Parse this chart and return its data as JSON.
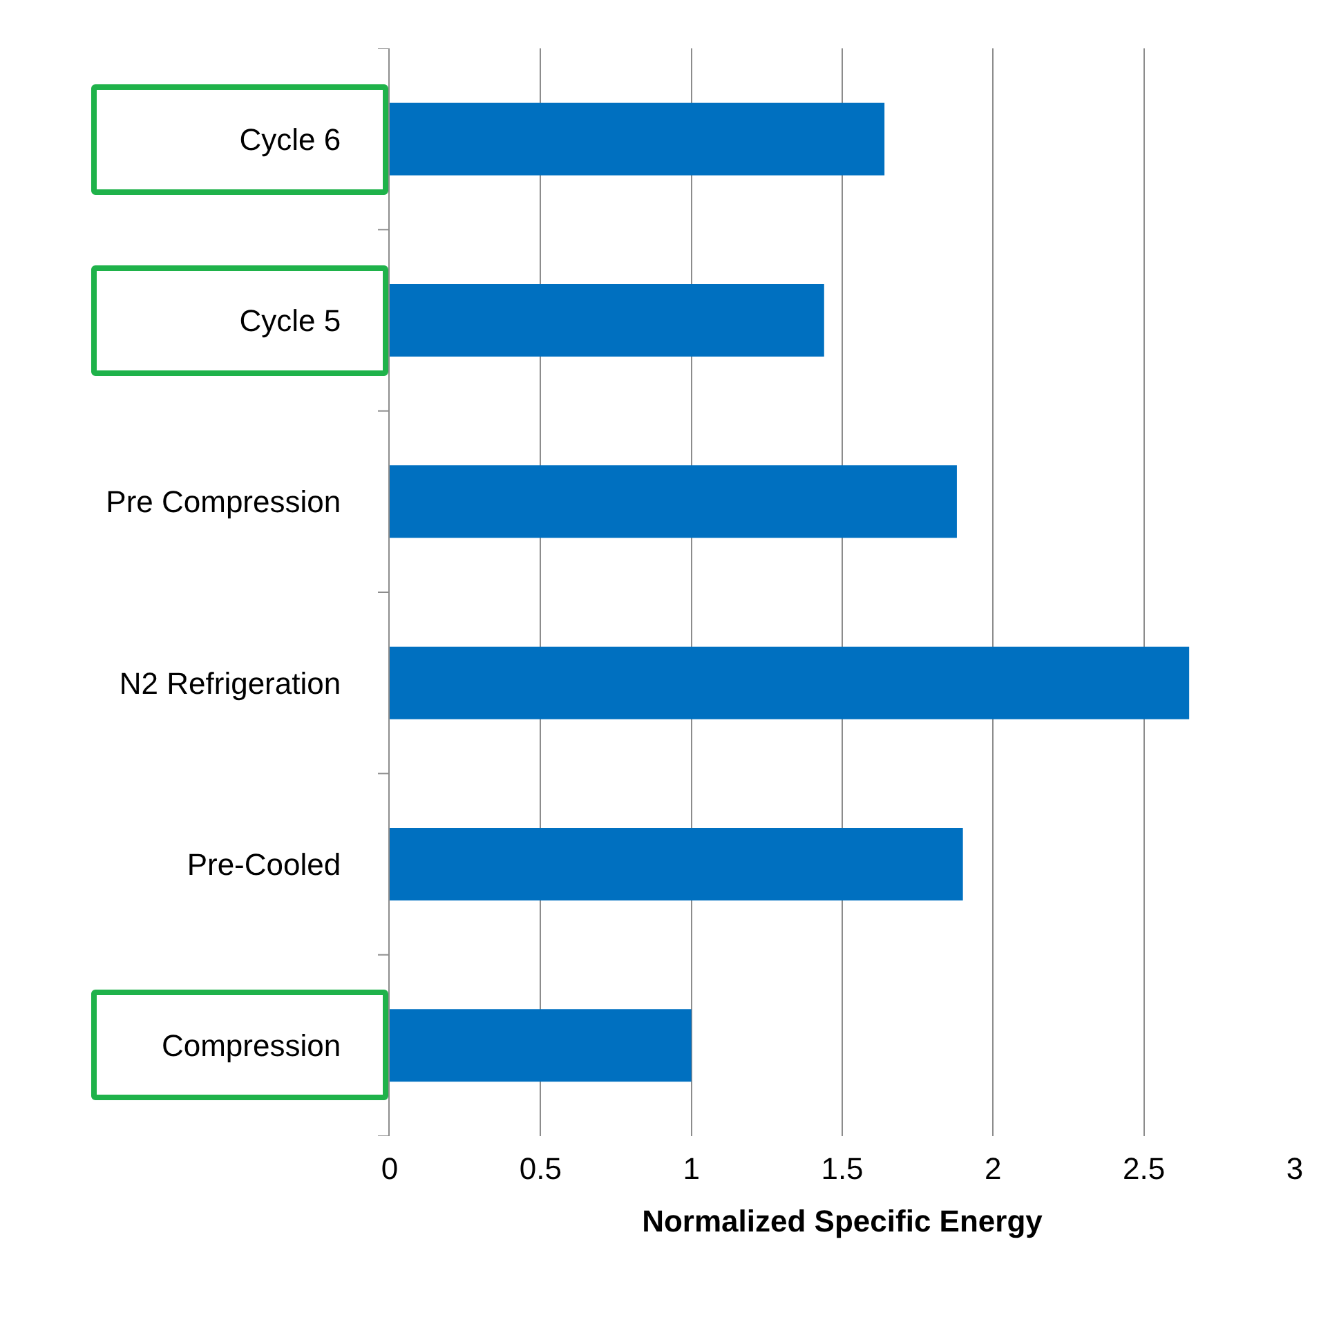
{
  "chart_data": {
    "type": "bar",
    "orientation": "horizontal",
    "xlabel": "Normalized Specific Energy",
    "categories": [
      "Cycle 6",
      "Cycle 5",
      "Pre Compression",
      "N2 Refrigeration",
      "Pre-Cooled",
      "Compression"
    ],
    "values": [
      1.64,
      1.44,
      1.88,
      2.65,
      1.9,
      1.0
    ],
    "color": "#0070c0",
    "xlim": [
      0,
      3
    ],
    "xticks": [
      0,
      0.5,
      1,
      1.5,
      2,
      2.5,
      3
    ],
    "grid": "x",
    "legend": false
  }
}
